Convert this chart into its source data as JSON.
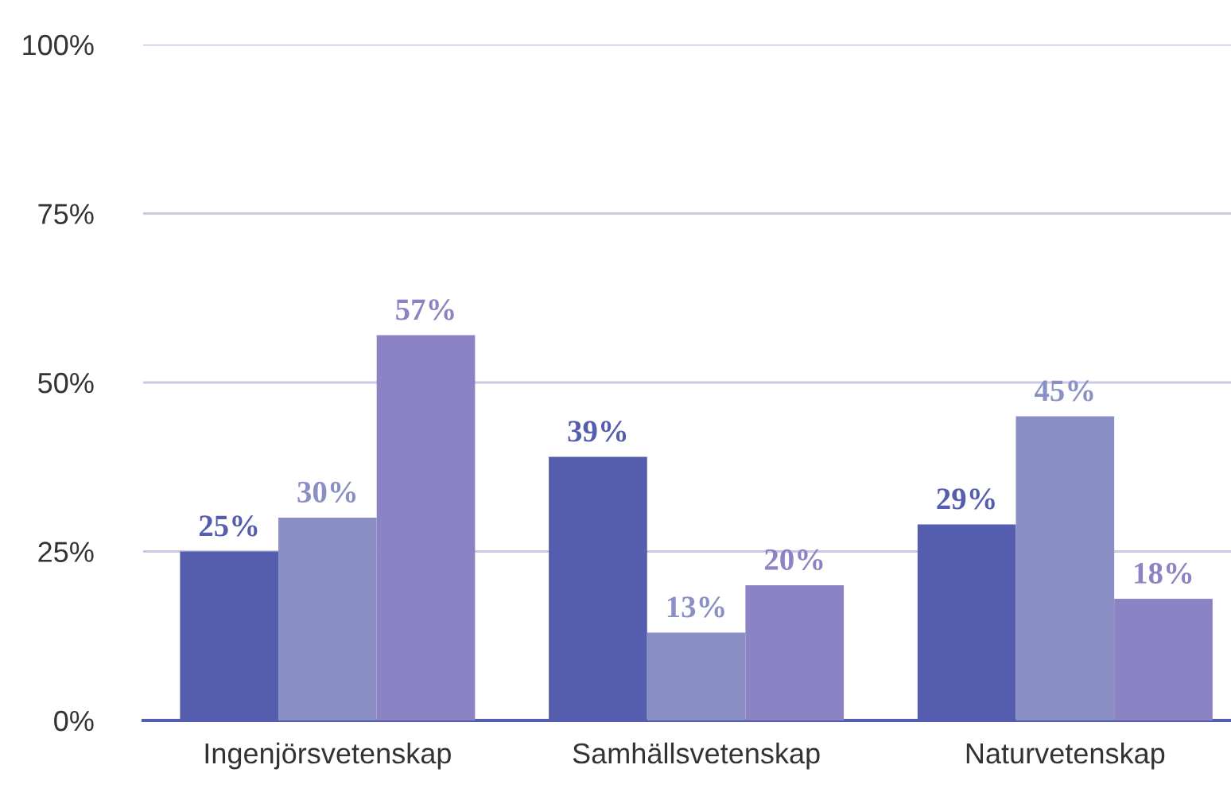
{
  "chart_data": {
    "type": "bar",
    "categories": [
      "Ingenjörsvetenskap",
      "Samhällsvetenskap",
      "Naturvetenskap"
    ],
    "series": [
      {
        "color": "#555eae",
        "values": [
          25,
          39,
          29
        ],
        "value_labels": [
          "25%",
          "39%",
          "29%"
        ]
      },
      {
        "color": "#8a90c6",
        "values": [
          30,
          13,
          45
        ],
        "value_labels": [
          "30%",
          "13%",
          "45%"
        ]
      },
      {
        "color": "#8b83c3",
        "values": [
          57,
          20,
          18
        ],
        "value_labels": [
          "57%",
          "20%",
          "18%"
        ]
      }
    ],
    "ylim": [
      0,
      100
    ],
    "yticks": [
      {
        "value": 0,
        "label": "0%"
      },
      {
        "value": 25,
        "label": "25%"
      },
      {
        "value": 50,
        "label": "50%"
      },
      {
        "value": 75,
        "label": "75%"
      },
      {
        "value": 100,
        "label": "100%"
      }
    ],
    "grid": "y",
    "legend": false
  }
}
